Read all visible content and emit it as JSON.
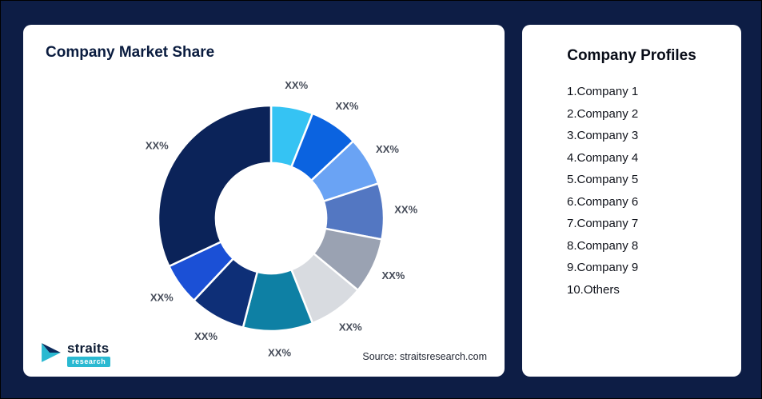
{
  "page": {
    "background": "#0d1d45"
  },
  "left_card": {
    "title": "Company Market Share",
    "source": "Source: straitsresearch.com",
    "logo": {
      "name": "straits",
      "sub": "research"
    }
  },
  "right_card": {
    "title": "Company Profiles",
    "items": [
      "1.Company 1",
      "2.Company 2",
      "3.Company 3",
      "4.Company 4",
      "5.Company 5",
      "6.Company 6",
      "7.Company 7",
      "8.Company 8",
      "9.Company 9",
      "10.Others"
    ]
  },
  "chart_data": {
    "type": "pie",
    "variant": "donut",
    "title": "Company Market Share",
    "categories": [
      "Company 1",
      "Company 2",
      "Company 3",
      "Company 4",
      "Company 5",
      "Company 6",
      "Company 7",
      "Company 8",
      "Company 9",
      "Others"
    ],
    "labels": [
      "XX%",
      "XX%",
      "XX%",
      "XX%",
      "XX%",
      "XX%",
      "XX%",
      "XX%",
      "XX%",
      "XX%"
    ],
    "values": [
      6,
      7,
      7,
      8,
      8,
      8,
      10,
      8,
      6,
      32
    ],
    "values_note": "Percent labels are masked as XX% in the image; values are approximate angular shares read from the donut.",
    "colors": [
      "#35c3f3",
      "#0b63e0",
      "#6aa3f4",
      "#5377c2",
      "#9aa2b2",
      "#d8dbe0",
      "#0e80a4",
      "#0e2f77",
      "#1b50d6",
      "#0b2359"
    ],
    "start_angle_deg": 0,
    "clockwise": true,
    "inner_radius_ratio": 0.49,
    "legend": "none",
    "label_position": "outside"
  }
}
